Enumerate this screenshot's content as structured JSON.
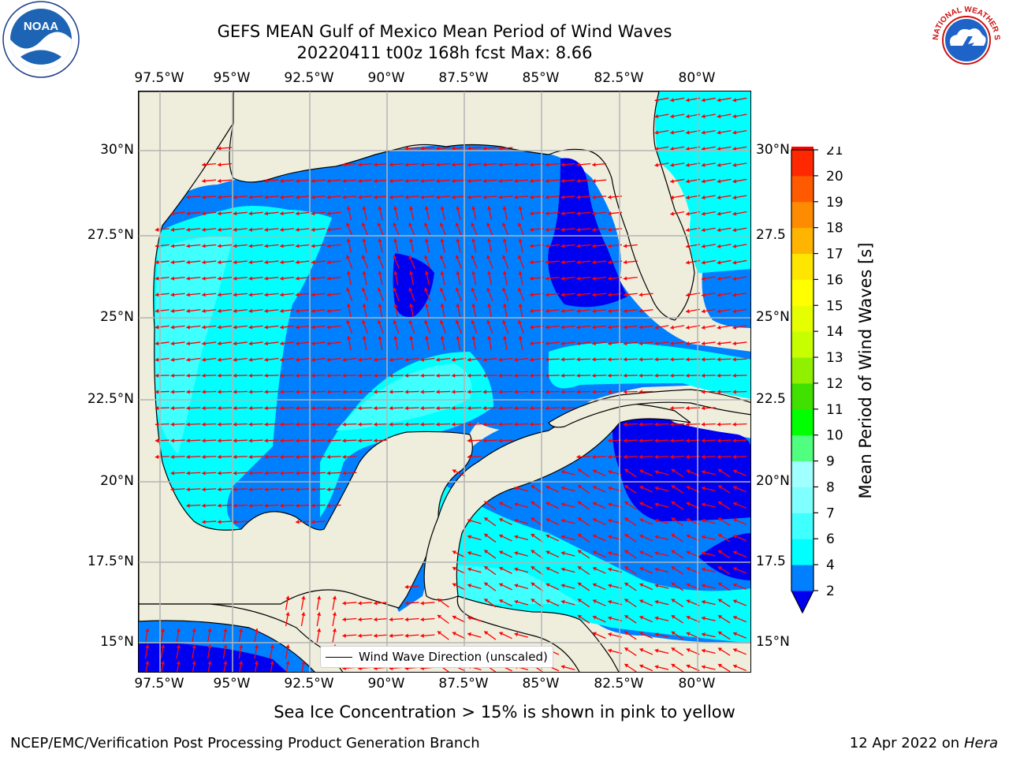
{
  "title": {
    "line1": "GEFS MEAN Gulf of Mexico Mean Period of Wind Waves",
    "line2": "20220411 t00z 168h fcst   Max: 8.66"
  },
  "map": {
    "lon_labels": [
      "97.5°W",
      "95°W",
      "92.5°W",
      "90°W",
      "87.5°W",
      "85°W",
      "82.5°W",
      "80°W"
    ],
    "lat_labels_left": [
      "30°N",
      "27.5°N",
      "25°N",
      "22.5°N",
      "20°N",
      "17.5°N",
      "15°N"
    ],
    "lat_labels_right": [
      "30°N",
      "27.5",
      "25°N",
      "22.5",
      "20°N",
      "17.5",
      "15°N"
    ],
    "land_color": "#efeedd",
    "legend_label": "Wind Wave Direction (unscaled)"
  },
  "colorbar": {
    "label": "Mean Period of Wind Waves [s]",
    "ticks": [
      "2",
      "4",
      "6",
      "7",
      "8",
      "9",
      "10",
      "11",
      "12",
      "13",
      "14",
      "15",
      "16",
      "17",
      "18",
      "19",
      "20",
      "21"
    ],
    "bins": [
      {
        "color": "#0000f0"
      },
      {
        "color": "#0080ff"
      },
      {
        "color": "#00ffff"
      },
      {
        "color": "#40ffff"
      },
      {
        "color": "#80ffff"
      },
      {
        "color": "#a0ffff"
      },
      {
        "color": "#50ff80"
      },
      {
        "color": "#00ff00"
      },
      {
        "color": "#40e000"
      },
      {
        "color": "#90f000"
      },
      {
        "color": "#c8ff00"
      },
      {
        "color": "#e6ff00"
      },
      {
        "color": "#ffff00"
      },
      {
        "color": "#ffe600"
      },
      {
        "color": "#ffb400"
      },
      {
        "color": "#ff8c00"
      },
      {
        "color": "#ff5a00"
      },
      {
        "color": "#ff2800"
      },
      {
        "color": "#ff0000"
      }
    ]
  },
  "caption": "Sea Ice Concentration > 15% is shown in pink to yellow",
  "footer": {
    "left": "NCEP/EMC/Verification Post Processing Product Generation Branch",
    "right_date": "12 Apr 2022 on ",
    "right_host": "Hera"
  },
  "logos": {
    "noaa_text": "NOAA",
    "noaa_ring": "NATIONAL OCEANIC AND ATMOSPHERIC ADMINISTRATION · U.S. DEPARTMENT OF COMMERCE",
    "nws_ring": "NATIONAL WEATHER SERVICE"
  },
  "colors": {
    "arrow": "#ff0000",
    "grid": "#b4b4b4",
    "water_deep": "#0000f0",
    "water_mid": "#0080ff",
    "water_light": "#00ffff",
    "water_lighter": "#40ffff"
  }
}
